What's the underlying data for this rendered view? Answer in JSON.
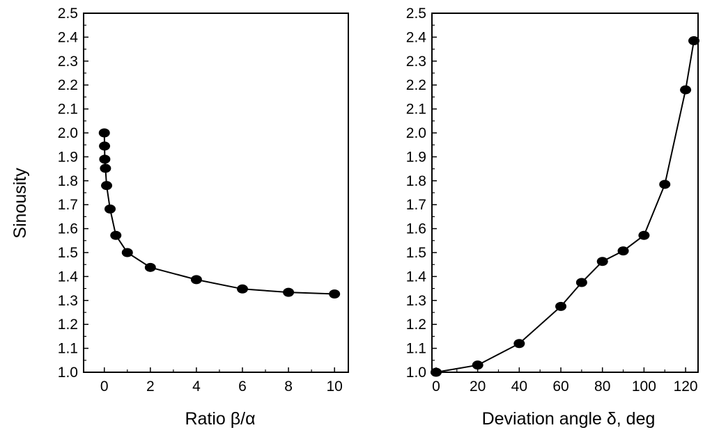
{
  "chart_data": [
    {
      "type": "line",
      "title": "",
      "xlabel": "Ratio β/α",
      "ylabel": "Sinousity",
      "xlim": [
        -0.9,
        10.6
      ],
      "ylim": [
        1.0,
        2.5
      ],
      "x_ticks": [
        0,
        2,
        4,
        6,
        8,
        10
      ],
      "y_ticks": [
        1.0,
        1.1,
        1.2,
        1.3,
        1.4,
        1.5,
        1.6,
        1.7,
        1.8,
        1.9,
        2.0,
        2.1,
        2.2,
        2.3,
        2.4,
        2.5
      ],
      "grid": false,
      "series": [
        {
          "color": "#000000",
          "x": [
            0.0,
            0.01,
            0.02,
            0.05,
            0.1,
            0.25,
            0.5,
            1.0,
            2.0,
            4.0,
            6.0,
            8.0,
            10.0
          ],
          "y": [
            2.0,
            1.945,
            1.89,
            1.852,
            1.78,
            1.682,
            1.572,
            1.5,
            1.438,
            1.387,
            1.348,
            1.334,
            1.327
          ]
        }
      ]
    },
    {
      "type": "line",
      "title": "",
      "xlabel": "Deviation angle δ, deg",
      "ylabel": "",
      "xlim": [
        -2,
        126
      ],
      "ylim": [
        1.0,
        2.5
      ],
      "x_ticks": [
        0,
        20,
        40,
        60,
        80,
        100,
        120
      ],
      "y_ticks": [
        1.0,
        1.1,
        1.2,
        1.3,
        1.4,
        1.5,
        1.6,
        1.7,
        1.8,
        1.9,
        2.0,
        2.1,
        2.2,
        2.3,
        2.4,
        2.5
      ],
      "grid": false,
      "series": [
        {
          "color": "#000000",
          "x": [
            0,
            20,
            40,
            60,
            70,
            80,
            90,
            100,
            110,
            120,
            124
          ],
          "y": [
            1.0,
            1.03,
            1.12,
            1.275,
            1.375,
            1.463,
            1.507,
            1.572,
            1.785,
            2.18,
            2.385
          ]
        }
      ]
    }
  ]
}
